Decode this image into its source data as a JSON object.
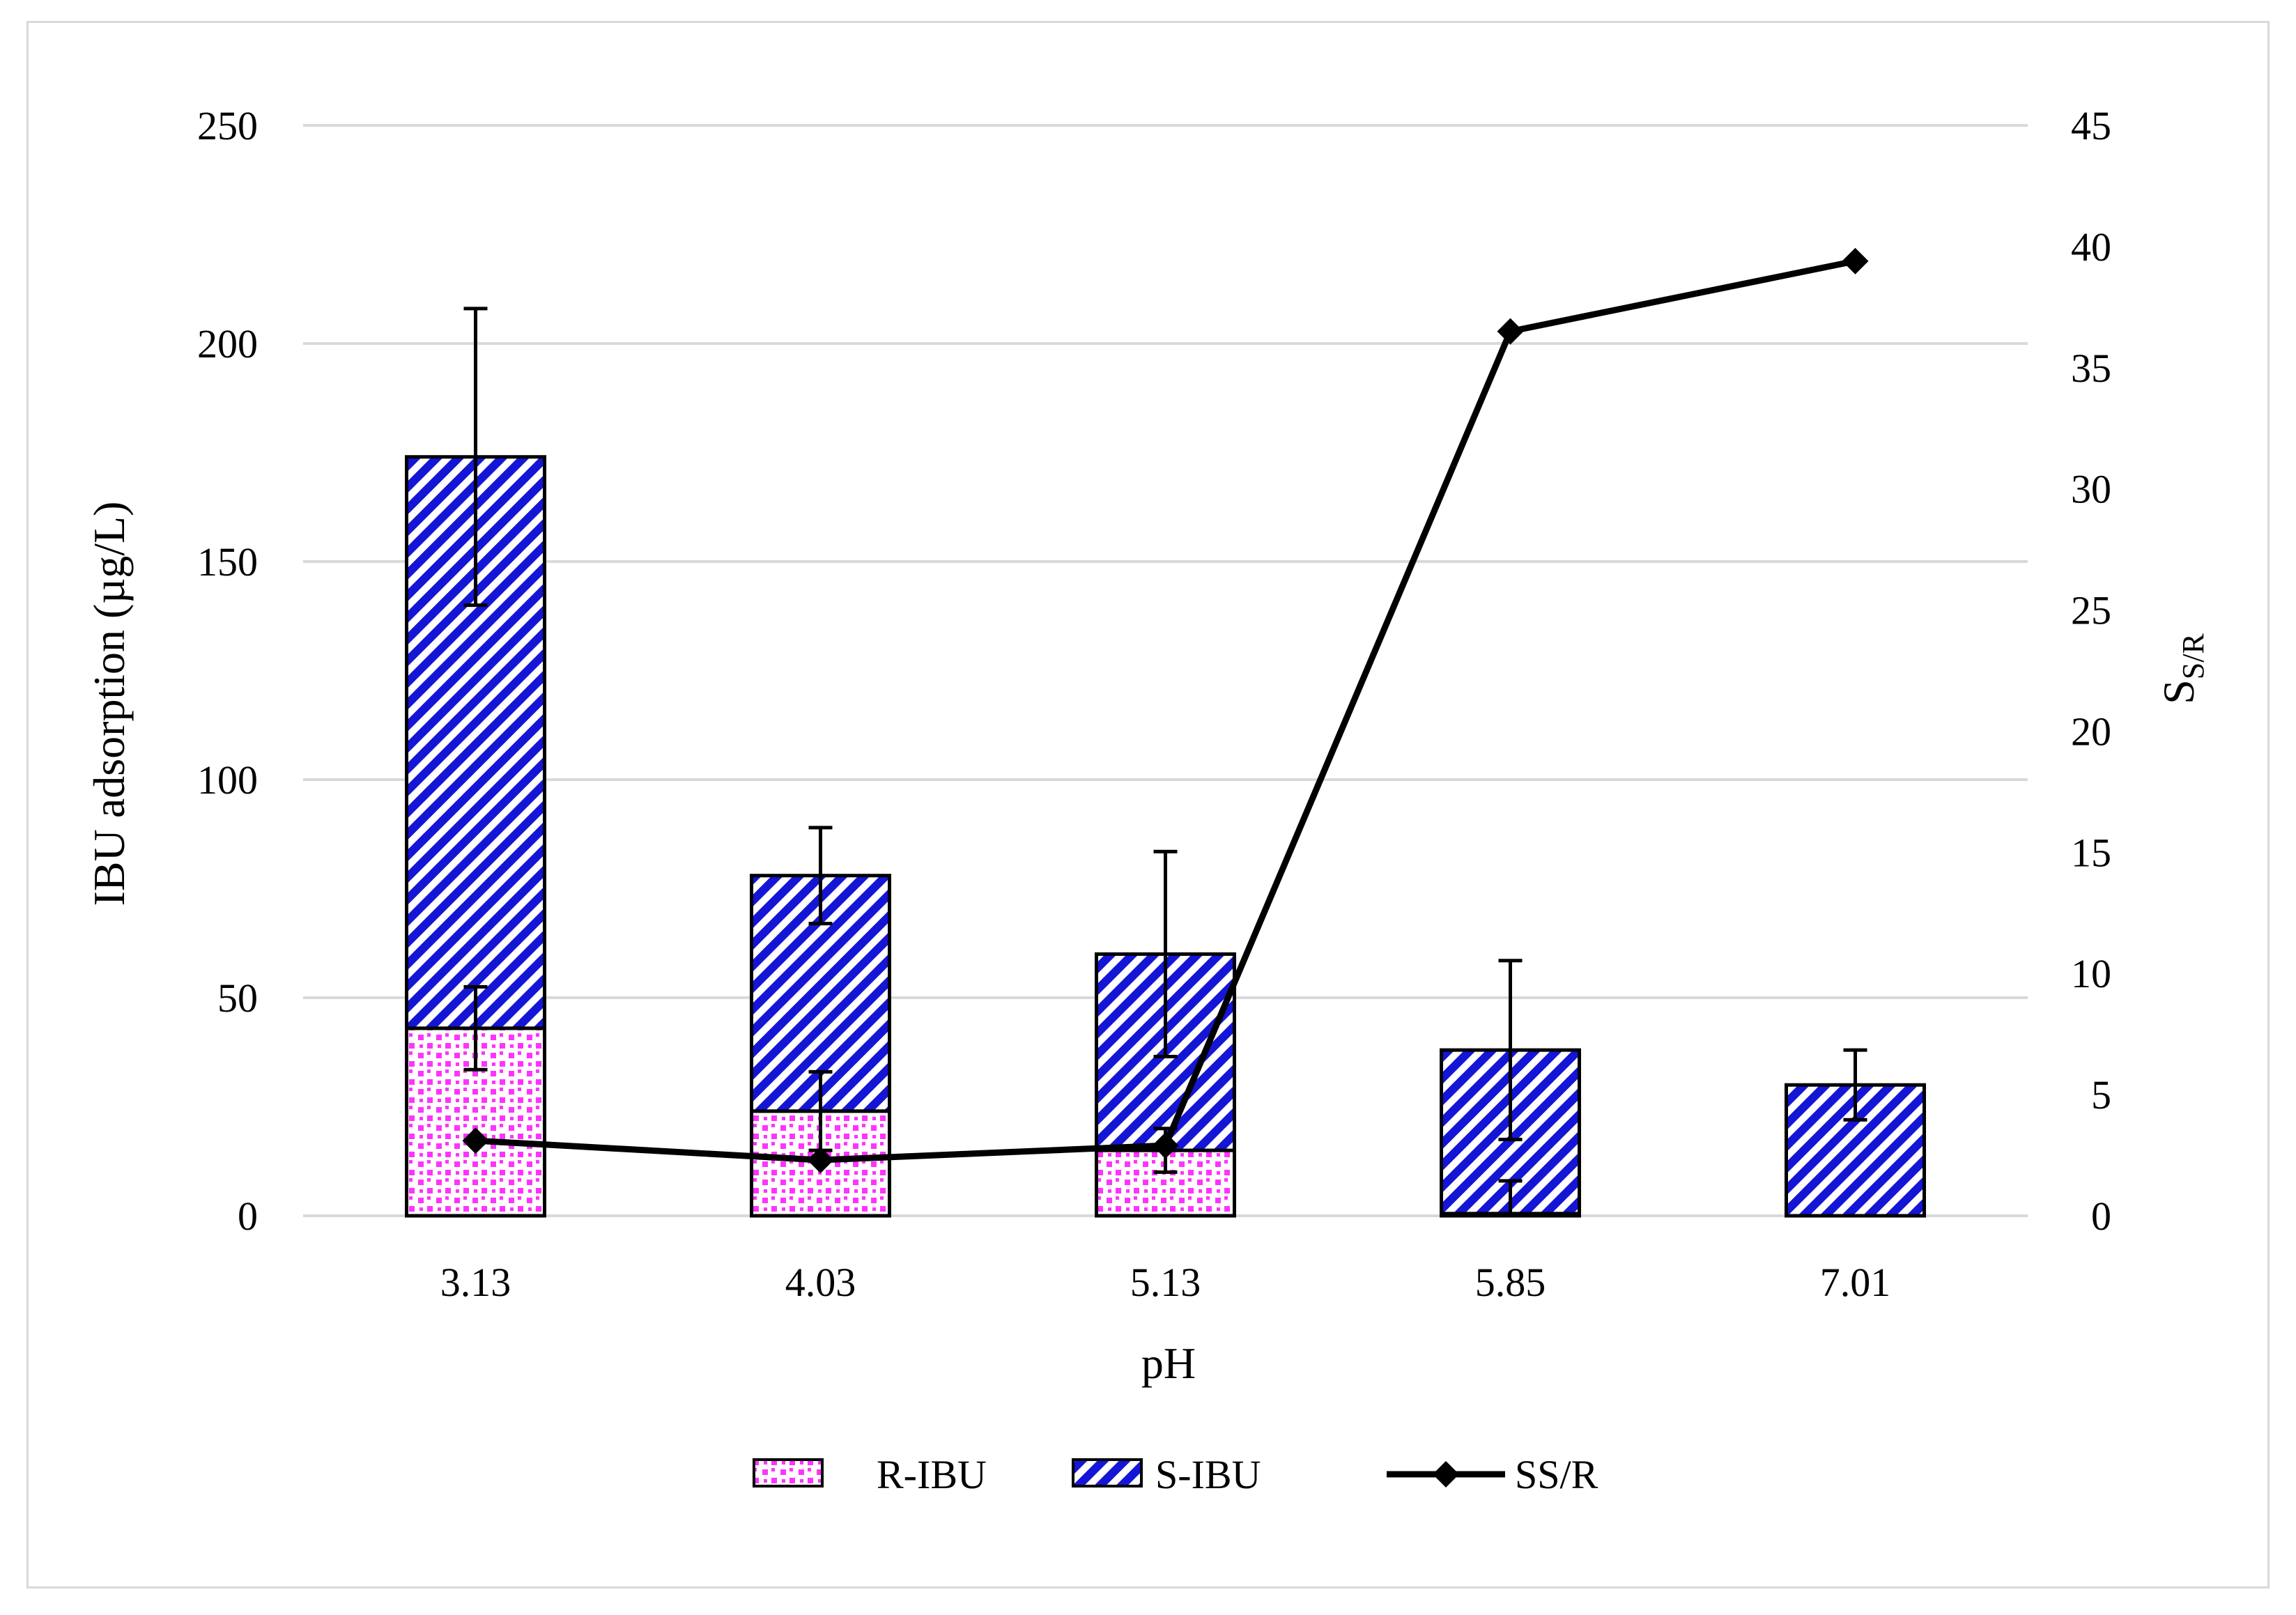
{
  "chart_data": {
    "type": "bar",
    "stacked": true,
    "x_label": "pH",
    "y_left_label": "IBU adsorption (µg/L)",
    "y_right_label_main": "S",
    "y_right_label_sub": "S/R",
    "y_left_range": [
      0,
      250
    ],
    "y_left_ticks": [
      "0",
      "50",
      "100",
      "150",
      "200",
      "250"
    ],
    "y_right_range": [
      0,
      45
    ],
    "y_right_ticks": [
      "0",
      "5",
      "10",
      "15",
      "20",
      "25",
      "30",
      "35",
      "40",
      "45"
    ],
    "categories": [
      "3.13",
      "4.03",
      "5.13",
      "5.85",
      "7.01"
    ],
    "series": [
      {
        "name": "R-IBU",
        "kind": "bar",
        "pattern": "dots",
        "color": "#ff33ff",
        "values": [
          43,
          24,
          15,
          0.5,
          0
        ],
        "error": [
          9.5,
          9,
          5,
          7.5,
          0
        ]
      },
      {
        "name": "S-IBU",
        "kind": "bar",
        "pattern": "diagonal",
        "color": "#1515d6",
        "values": [
          131,
          54,
          45,
          37.5,
          30
        ],
        "error": [
          34,
          11,
          23.5,
          20.5,
          8
        ]
      },
      {
        "name": "SS/R",
        "kind": "line",
        "axis": "right",
        "marker": "diamond",
        "color": "#000000",
        "values": [
          3.1,
          2.3,
          2.9,
          36.5,
          39.4
        ]
      }
    ],
    "legend_position": "bottom",
    "grid": true
  }
}
